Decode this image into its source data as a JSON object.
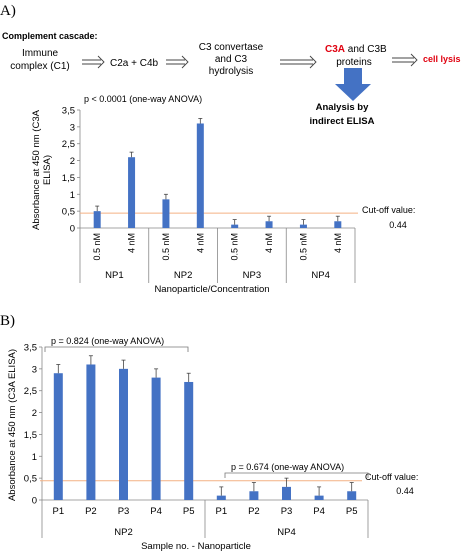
{
  "panel_labels": {
    "a": "A)",
    "b": "B)"
  },
  "cascade": {
    "heading": "Complement cascade:",
    "immune_line1": "Immune",
    "immune_line2": "complex (C1)",
    "c2a_c4b": "C2a + C4b",
    "conv_line1": "C3 convertase",
    "conv_line2": "and C3",
    "conv_line3": "hydrolysis",
    "c3a": "C3A",
    "c3b_part": " and C3B",
    "proteins": "proteins",
    "cell_lysis": "cell lysis",
    "analysis_line1": "Analysis by",
    "analysis_line2": "indirect ELISA",
    "accent_color": "#e0000f",
    "arrow_color": "#4472c4"
  },
  "chart_data": [
    {
      "type": "bar",
      "panel": "A",
      "ylabel_line1": "Absorbance at 450 nm (C3A",
      "ylabel_line2": "ELISA)",
      "xlabel": "Nanoparticle/Concentration",
      "annotation": "p < 0.0001 (one-way ANOVA)",
      "ylim": [
        0,
        3.5
      ],
      "yticks": [
        "0",
        "0,5",
        "1",
        "1,5",
        "2",
        "2,5",
        "3",
        "3,5"
      ],
      "groups": [
        {
          "name": "NP1",
          "labels": [
            "0.5 nM",
            "4 nM"
          ],
          "values": [
            0.5,
            2.1
          ],
          "errors": [
            0.15,
            0.15
          ]
        },
        {
          "name": "NP2",
          "labels": [
            "0.5 nM",
            "4 nM"
          ],
          "values": [
            0.85,
            3.1
          ],
          "errors": [
            0.15,
            0.15
          ]
        },
        {
          "name": "NP3",
          "labels": [
            "0.5 nM",
            "4 nM"
          ],
          "values": [
            0.1,
            0.2
          ],
          "errors": [
            0.15,
            0.15
          ]
        },
        {
          "name": "NP4",
          "labels": [
            "0.5 nM",
            "4 nM"
          ],
          "values": [
            0.1,
            0.2
          ],
          "errors": [
            0.15,
            0.15
          ]
        }
      ],
      "cutoff": {
        "value": 0.44,
        "label_line1": "Cut-off value:",
        "label_line2": "0.44"
      },
      "bar_color": "#4472c4",
      "cutoff_color": "#f4b183"
    },
    {
      "type": "bar",
      "panel": "B",
      "ylabel": "Absorbance at 450 nm (C3A ELISA)",
      "xlabel": "Sample no. - Nanoparticle",
      "ylim": [
        0,
        3.5
      ],
      "yticks": [
        "0",
        "0,5",
        "1",
        "1,5",
        "2",
        "2,5",
        "3",
        "3,5"
      ],
      "groups": [
        {
          "name": "NP2",
          "labels": [
            "P1",
            "P2",
            "P3",
            "P4",
            "P5"
          ],
          "values": [
            2.9,
            3.1,
            3.0,
            2.8,
            2.7
          ],
          "errors": [
            0.2,
            0.2,
            0.2,
            0.2,
            0.2
          ],
          "annotation": "p = 0.824 (one-way ANOVA)"
        },
        {
          "name": "NP4",
          "labels": [
            "P1",
            "P2",
            "P3",
            "P4",
            "P5"
          ],
          "values": [
            0.1,
            0.2,
            0.3,
            0.1,
            0.2
          ],
          "errors": [
            0.2,
            0.2,
            0.2,
            0.2,
            0.2
          ],
          "annotation": "p = 0.674 (one-way ANOVA)"
        }
      ],
      "cutoff": {
        "value": 0.44,
        "label_line1": "Cut-off value:",
        "label_line2": "0.44"
      },
      "bar_color": "#4472c4",
      "cutoff_color": "#f4b183"
    }
  ]
}
